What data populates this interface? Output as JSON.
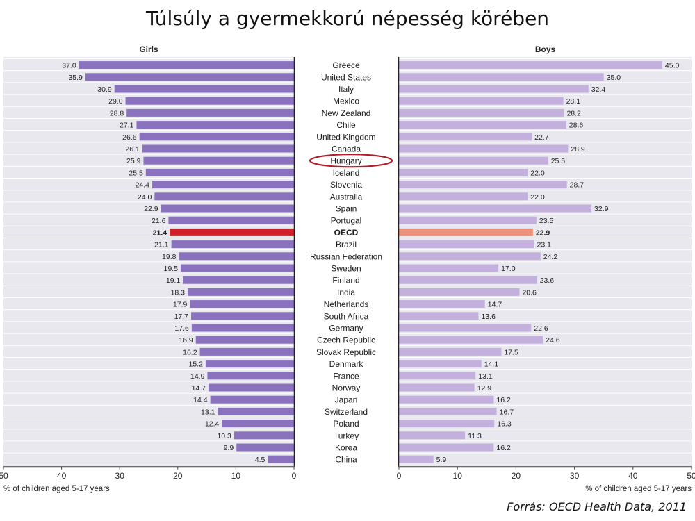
{
  "slide": {
    "title": "Túlsúly a gyermekkorú népesség körében",
    "source": "Forrás: OECD Health Data, 2011"
  },
  "colors": {
    "girls": "#8b72bf",
    "girls_oecd": "#d21f2a",
    "boys": "#c4b0dc",
    "boys_oecd": "#f0907a",
    "panel_background": "#e8e8ee",
    "highlight_circle": "#b01c28"
  },
  "chart_data": {
    "type": "bar",
    "orientation": "horizontal",
    "highlighted_category": "OECD",
    "circled_category": "Hungary",
    "categories": [
      "Greece",
      "United States",
      "Italy",
      "Mexico",
      "New Zealand",
      "Chile",
      "United Kingdom",
      "Canada",
      "Hungary",
      "Iceland",
      "Slovenia",
      "Australia",
      "Spain",
      "Portugal",
      "OECD",
      "Brazil",
      "Russian Federation",
      "Sweden",
      "Finland",
      "India",
      "Netherlands",
      "South Africa",
      "Germany",
      "Czech Republic",
      "Slovak Republic",
      "Denmark",
      "France",
      "Norway",
      "Japan",
      "Switzerland",
      "Poland",
      "Turkey",
      "Korea",
      "China"
    ],
    "series": [
      {
        "name": "Girls",
        "values": [
          37.0,
          35.9,
          30.9,
          29.0,
          28.8,
          27.1,
          26.6,
          26.1,
          25.9,
          25.5,
          24.4,
          24.0,
          22.9,
          21.6,
          21.4,
          21.1,
          19.8,
          19.5,
          19.1,
          18.3,
          17.9,
          17.7,
          17.6,
          16.9,
          16.2,
          15.2,
          14.9,
          14.7,
          14.4,
          13.1,
          12.4,
          10.3,
          9.9,
          4.5
        ],
        "labels": [
          "37.0",
          "35.9",
          "30.9",
          "29.0",
          "28.8",
          "27.1",
          "26.6",
          "26.1",
          "25.9",
          "25.5",
          "24.4",
          "24.0",
          "22.9",
          "21.6",
          "21.4",
          "21.1",
          "19.8",
          "19.5",
          "19.1",
          "18.3",
          "17.9",
          "17.7",
          "17.6",
          "16.9",
          "16.2",
          "15.2",
          "14.9",
          "14.7",
          "14.4",
          "13.1",
          "12.4",
          "10.3",
          "9.9",
          "4.5"
        ],
        "xlim": [
          50,
          0
        ],
        "ticks": [
          "50",
          "40",
          "30",
          "20",
          "10",
          "0"
        ],
        "xlabel": "% of children aged 5-17 years"
      },
      {
        "name": "Boys",
        "values": [
          45.0,
          35.0,
          32.4,
          28.1,
          28.2,
          28.6,
          22.7,
          28.9,
          25.5,
          22.0,
          28.7,
          22.0,
          32.9,
          23.5,
          22.9,
          23.1,
          24.2,
          17.0,
          23.6,
          20.6,
          14.7,
          13.6,
          22.6,
          24.6,
          17.5,
          14.1,
          13.1,
          12.9,
          16.2,
          16.7,
          16.3,
          11.3,
          16.2,
          5.9
        ],
        "labels": [
          "45.0",
          "35.0",
          "32.4",
          "28.1",
          "28.2",
          "28.6",
          "22.7",
          "28.9",
          "25.5",
          "22.0",
          "28.7",
          "22.0",
          "32.9",
          "23.5",
          "22.9",
          "23.1",
          "24.2",
          "17.0",
          "23.6",
          "20.6",
          "14.7",
          "13.6",
          "22.6",
          "24.6",
          "17.5",
          "14.1",
          "13.1",
          "12.9",
          "16.2",
          "16.7",
          "16.3",
          "11.3",
          "16.2",
          "5.9"
        ],
        "xlim": [
          0,
          50
        ],
        "ticks": [
          "0",
          "10",
          "20",
          "30",
          "40",
          "50"
        ],
        "xlabel": "% of children aged 5-17 years"
      }
    ]
  }
}
